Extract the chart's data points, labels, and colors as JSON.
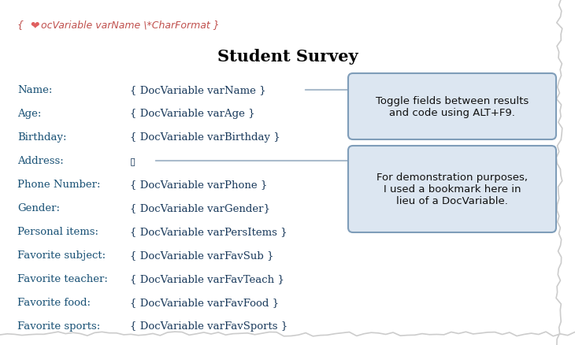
{
  "title": "Student Survey",
  "header_line1": "{ ",
  "header_icon": "❤",
  "header_rest": "ocVariable varName \\*CharFormat }",
  "labels": [
    "Name:",
    "Age:",
    "Birthday:",
    "Address:",
    "Phone Number:",
    "Gender:",
    "Personal items:",
    "Favorite subject:",
    "Favorite teacher:",
    "Favorite food:",
    "Favorite sports:"
  ],
  "values": [
    "{ DocVariable varName }",
    "{ DocVariable varAge }",
    "{ DocVariable varBirthday }",
    "▯",
    "{ DocVariable varPhone }",
    "{ DocVariable varGender}",
    "{ DocVariable varPersItems }",
    "{ DocVariable varFavSub }",
    "{ DocVariable varFavTeach }",
    "{ DocVariable varFavFood }",
    "{ DocVariable varFavSports }"
  ],
  "callout1_text": "Toggle fields between results\nand code using ALT+F9.",
  "callout2_text": "For demonstration purposes,\nI used a bookmark here in\nlieu of a DocVariable.",
  "label_color": "#1a5276",
  "value_color": "#1a3a5c",
  "title_color": "#000000",
  "header_color": "#c0504d",
  "header_icon_color": "#e06060",
  "callout_bg": "#dce6f1",
  "callout_border": "#7f9db9",
  "callout_text_color": "#111111",
  "bg_color": "#ffffff",
  "arrow_color": "#aabbcc",
  "torn_edge_color": "#cccccc"
}
